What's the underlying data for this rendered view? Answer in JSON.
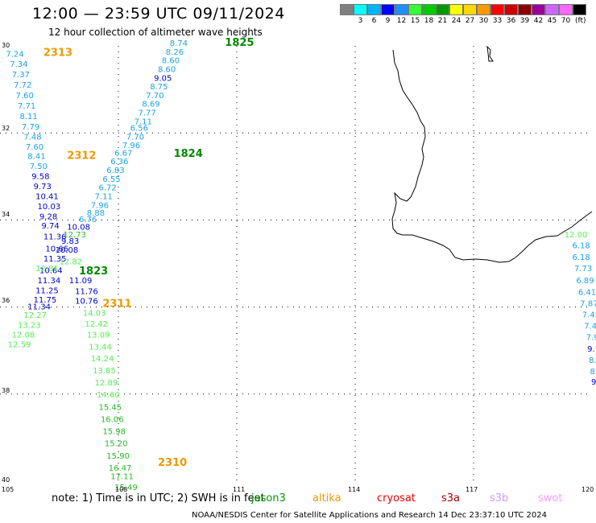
{
  "header": {
    "title": "12:00 — 23:59 UTC 09/11/2024",
    "subtitle": "12 hour collection of altimeter wave heights"
  },
  "colorbar": {
    "unit": "(ft)",
    "entries": [
      {
        "label": "",
        "color": "#808080"
      },
      {
        "label": "3",
        "color": "#00ffff"
      },
      {
        "label": "6",
        "color": "#00b4ff"
      },
      {
        "label": "9",
        "color": "#0000ff"
      },
      {
        "label": "12",
        "color": "#1e90ff"
      },
      {
        "label": "15",
        "color": "#33ff33"
      },
      {
        "label": "18",
        "color": "#00cc00"
      },
      {
        "label": "21",
        "color": "#009900"
      },
      {
        "label": "24",
        "color": "#ffff00"
      },
      {
        "label": "27",
        "color": "#ffd700"
      },
      {
        "label": "30",
        "color": "#ff9900"
      },
      {
        "label": "33",
        "color": "#ff0000"
      },
      {
        "label": "36",
        "color": "#cc0000"
      },
      {
        "label": "39",
        "color": "#8b0000"
      },
      {
        "label": "42",
        "color": "#990099"
      },
      {
        "label": "45",
        "color": "#cc66ff"
      },
      {
        "label": "70",
        "color": "#ff66ff"
      },
      {
        "label": "",
        "color": "#000000"
      }
    ]
  },
  "axes": {
    "lat_labels": [
      "30",
      "32",
      "34",
      "36",
      "38",
      "40"
    ],
    "lon_labels": [
      "105",
      "108",
      "111",
      "114",
      "117",
      "120"
    ]
  },
  "colors": {
    "c_lightblue": "#1aa3e8",
    "c_blue": "#0000cc",
    "c_lgreen": "#55ee55",
    "c_green": "#22bb22",
    "c_dgreen": "#008800",
    "c_orange": "#ee9900",
    "c_pink": "#ee66ee"
  },
  "passes": [
    {
      "label": "2313",
      "color": "c_orange",
      "lon": 106.1,
      "lat": 30.23
    },
    {
      "label": "1825",
      "color": "c_dgreen",
      "lon": 110.7,
      "lat": 30.0
    },
    {
      "label": "2312",
      "color": "c_orange",
      "lon": 106.7,
      "lat": 32.6
    },
    {
      "label": "1824",
      "color": "c_dgreen",
      "lon": 109.4,
      "lat": 32.55
    },
    {
      "label": "1823",
      "color": "c_dgreen",
      "lon": 107.0,
      "lat": 35.25
    },
    {
      "label": "2311",
      "color": "c_orange",
      "lon": 107.6,
      "lat": 36.0
    },
    {
      "label": "2310",
      "color": "c_orange",
      "lon": 109.0,
      "lat": 39.65
    }
  ],
  "tracks": [
    {
      "name": "pass-2313",
      "points": [
        {
          "v": "7.24",
          "c": "c_lightblue",
          "lon": 105.15,
          "lat": 30.25
        },
        {
          "v": "7.34",
          "c": "c_lightblue",
          "lon": 105.25,
          "lat": 30.48
        },
        {
          "v": "7.37",
          "c": "c_lightblue",
          "lon": 105.3,
          "lat": 30.72
        },
        {
          "v": "7.72",
          "c": "c_lightblue",
          "lon": 105.35,
          "lat": 30.96
        },
        {
          "v": "7.60",
          "c": "c_lightblue",
          "lon": 105.4,
          "lat": 31.2
        },
        {
          "v": "7.71",
          "c": "c_lightblue",
          "lon": 105.45,
          "lat": 31.44
        },
        {
          "v": "8.11",
          "c": "c_lightblue",
          "lon": 105.5,
          "lat": 31.68
        },
        {
          "v": "7.79",
          "c": "c_lightblue",
          "lon": 105.55,
          "lat": 31.92
        },
        {
          "v": "7.48",
          "c": "c_lightblue",
          "lon": 105.6,
          "lat": 32.15
        },
        {
          "v": "7.60",
          "c": "c_lightblue",
          "lon": 105.65,
          "lat": 32.38
        },
        {
          "v": "8.41",
          "c": "c_lightblue",
          "lon": 105.7,
          "lat": 32.6
        },
        {
          "v": "7.50",
          "c": "c_lightblue",
          "lon": 105.75,
          "lat": 32.83
        },
        {
          "v": "9.58",
          "c": "c_blue",
          "lon": 105.8,
          "lat": 33.06
        },
        {
          "v": "9.73",
          "c": "c_blue",
          "lon": 105.85,
          "lat": 33.29
        },
        {
          "v": "10.41",
          "c": "c_blue",
          "lon": 105.9,
          "lat": 33.52
        },
        {
          "v": "10.03",
          "c": "c_blue",
          "lon": 105.95,
          "lat": 33.75
        },
        {
          "v": "9.28",
          "c": "c_blue",
          "lon": 106.0,
          "lat": 33.98
        },
        {
          "v": "9.74",
          "c": "c_blue",
          "lon": 106.05,
          "lat": 34.2
        },
        {
          "v": "11.36",
          "c": "c_blue",
          "lon": 106.1,
          "lat": 34.45
        },
        {
          "v": "10.66",
          "c": "c_blue",
          "lon": 106.15,
          "lat": 34.72
        },
        {
          "v": "11.35",
          "c": "c_blue",
          "lon": 106.1,
          "lat": 34.95
        },
        {
          "v": "10.64",
          "c": "c_blue",
          "lon": 106.0,
          "lat": 35.22
        },
        {
          "v": "11.34",
          "c": "c_blue",
          "lon": 105.95,
          "lat": 35.45
        },
        {
          "v": "11.25",
          "c": "c_blue",
          "lon": 105.9,
          "lat": 35.68
        },
        {
          "v": "11.75",
          "c": "c_blue",
          "lon": 105.85,
          "lat": 35.9
        },
        {
          "v": "11.34",
          "c": "c_blue",
          "lon": 105.7,
          "lat": 36.05
        }
      ]
    },
    {
      "name": "pass-1825",
      "points": [
        {
          "v": "8.74",
          "c": "c_lightblue",
          "lon": 109.3,
          "lat": 30.0
        },
        {
          "v": "8.26",
          "c": "c_lightblue",
          "lon": 109.2,
          "lat": 30.2
        },
        {
          "v": "8.60",
          "c": "c_lightblue",
          "lon": 109.1,
          "lat": 30.4
        },
        {
          "v": "8.60",
          "c": "c_lightblue",
          "lon": 109.0,
          "lat": 30.6
        },
        {
          "v": "9.05",
          "c": "c_blue",
          "lon": 108.9,
          "lat": 30.8
        },
        {
          "v": "8.75",
          "c": "c_lightblue",
          "lon": 108.8,
          "lat": 31.0
        },
        {
          "v": "7.70",
          "c": "c_lightblue",
          "lon": 108.7,
          "lat": 31.2
        },
        {
          "v": "8.69",
          "c": "c_lightblue",
          "lon": 108.6,
          "lat": 31.4
        },
        {
          "v": "7.77",
          "c": "c_lightblue",
          "lon": 108.5,
          "lat": 31.6
        },
        {
          "v": "7.11",
          "c": "c_lightblue",
          "lon": 108.4,
          "lat": 31.8
        },
        {
          "v": "6.56",
          "c": "c_lightblue",
          "lon": 108.3,
          "lat": 31.95
        },
        {
          "v": "7.70",
          "c": "c_lightblue",
          "lon": 108.2,
          "lat": 32.15
        },
        {
          "v": "7.96",
          "c": "c_lightblue",
          "lon": 108.1,
          "lat": 32.35
        },
        {
          "v": "6.67",
          "c": "c_lightblue",
          "lon": 107.9,
          "lat": 32.52
        },
        {
          "v": "6.36",
          "c": "c_lightblue",
          "lon": 107.8,
          "lat": 32.72
        },
        {
          "v": "6.83",
          "c": "c_lightblue",
          "lon": 107.7,
          "lat": 32.92
        },
        {
          "v": "6.55",
          "c": "c_lightblue",
          "lon": 107.6,
          "lat": 33.12
        },
        {
          "v": "6.72",
          "c": "c_lightblue",
          "lon": 107.5,
          "lat": 33.32
        },
        {
          "v": "7.11",
          "c": "c_lightblue",
          "lon": 107.4,
          "lat": 33.52
        },
        {
          "v": "7.96",
          "c": "c_lightblue",
          "lon": 107.3,
          "lat": 33.72
        },
        {
          "v": "8.88",
          "c": "c_lightblue",
          "lon": 107.2,
          "lat": 33.9
        },
        {
          "v": "6.76",
          "c": "c_lightblue",
          "lon": 107.0,
          "lat": 34.05
        },
        {
          "v": "10.08",
          "c": "c_blue",
          "lon": 106.7,
          "lat": 34.22
        },
        {
          "v": "12.73",
          "c": "c_green",
          "lon": 106.6,
          "lat": 34.4
        },
        {
          "v": "9.83",
          "c": "c_blue",
          "lon": 106.55,
          "lat": 34.55
        },
        {
          "v": "10.08",
          "c": "c_blue",
          "lon": 106.4,
          "lat": 34.75
        },
        {
          "v": "12.82",
          "c": "c_lgreen",
          "lon": 106.5,
          "lat": 35.02
        },
        {
          "v": "12.81",
          "c": "c_lgreen",
          "lon": 105.9,
          "lat": 35.18
        },
        {
          "v": "11.09",
          "c": "c_blue",
          "lon": 106.75,
          "lat": 35.45
        },
        {
          "v": "11.76",
          "c": "c_blue",
          "lon": 106.9,
          "lat": 35.7
        },
        {
          "v": "10.76",
          "c": "c_blue",
          "lon": 106.9,
          "lat": 35.92
        }
      ]
    },
    {
      "name": "pass-2310",
      "points": [
        {
          "v": "12.27",
          "c": "c_lgreen",
          "lon": 105.6,
          "lat": 36.25
        },
        {
          "v": "13.23",
          "c": "c_lgreen",
          "lon": 105.45,
          "lat": 36.48
        },
        {
          "v": "12.08",
          "c": "c_lgreen",
          "lon": 105.3,
          "lat": 36.7
        },
        {
          "v": "12.59",
          "c": "c_lgreen",
          "lon": 105.2,
          "lat": 36.92
        },
        {
          "v": "14.03",
          "c": "c_lgreen",
          "lon": 107.1,
          "lat": 36.2
        },
        {
          "v": "12.42",
          "c": "c_lgreen",
          "lon": 107.15,
          "lat": 36.45
        },
        {
          "v": "13.09",
          "c": "c_lgreen",
          "lon": 107.2,
          "lat": 36.7
        },
        {
          "v": "13.44",
          "c": "c_lgreen",
          "lon": 107.25,
          "lat": 36.98
        },
        {
          "v": "14.24",
          "c": "c_lgreen",
          "lon": 107.3,
          "lat": 37.25
        },
        {
          "v": "13.85",
          "c": "c_lgreen",
          "lon": 107.35,
          "lat": 37.52
        },
        {
          "v": "12.89",
          "c": "c_lgreen",
          "lon": 107.4,
          "lat": 37.8
        },
        {
          "v": "14.60",
          "c": "c_lgreen",
          "lon": 107.45,
          "lat": 38.08
        },
        {
          "v": "15.45",
          "c": "c_green",
          "lon": 107.5,
          "lat": 38.36
        },
        {
          "v": "16.06",
          "c": "c_green",
          "lon": 107.55,
          "lat": 38.64
        },
        {
          "v": "15.98",
          "c": "c_green",
          "lon": 107.6,
          "lat": 38.92
        },
        {
          "v": "15.20",
          "c": "c_green",
          "lon": 107.65,
          "lat": 39.2
        },
        {
          "v": "15.90",
          "c": "c_green",
          "lon": 107.7,
          "lat": 39.48
        },
        {
          "v": "16.47",
          "c": "c_green",
          "lon": 107.75,
          "lat": 39.76
        },
        {
          "v": "17.11",
          "c": "c_green",
          "lon": 107.8,
          "lat": 39.95
        },
        {
          "v": "15.49",
          "c": "c_green",
          "lon": 107.9,
          "lat": 40.2
        }
      ]
    },
    {
      "name": "pass-east",
      "points": [
        {
          "v": "12.00",
          "c": "c_lgreen",
          "lon": 119.3,
          "lat": 34.4
        },
        {
          "v": "6.18",
          "c": "c_lightblue",
          "lon": 119.5,
          "lat": 34.65
        },
        {
          "v": "6.18",
          "c": "c_lightblue",
          "lon": 119.5,
          "lat": 34.92
        },
        {
          "v": "7.73",
          "c": "c_lightblue",
          "lon": 119.55,
          "lat": 35.18
        },
        {
          "v": "6.89",
          "c": "c_lightblue",
          "lon": 119.6,
          "lat": 35.45
        },
        {
          "v": "6.41",
          "c": "c_lightblue",
          "lon": 119.65,
          "lat": 35.72
        },
        {
          "v": "7.87",
          "c": "c_lightblue",
          "lon": 119.7,
          "lat": 35.98
        },
        {
          "v": "7.45",
          "c": "c_lightblue",
          "lon": 119.75,
          "lat": 36.24
        },
        {
          "v": "7.41",
          "c": "c_lightblue",
          "lon": 119.8,
          "lat": 36.5
        },
        {
          "v": "7.9",
          "c": "c_lightblue",
          "lon": 119.85,
          "lat": 36.76
        },
        {
          "v": "9.1",
          "c": "c_blue",
          "lon": 119.88,
          "lat": 37.02
        },
        {
          "v": "8.7",
          "c": "c_lightblue",
          "lon": 119.92,
          "lat": 37.28
        },
        {
          "v": "8.",
          "c": "c_lightblue",
          "lon": 119.95,
          "lat": 37.54
        },
        {
          "v": "9",
          "c": "c_blue",
          "lon": 119.98,
          "lat": 37.78
        }
      ]
    }
  ],
  "note": {
    "text": "note:  1) Time is in UTC; 2) SWH is in feet",
    "satellites": [
      {
        "name": "jason3",
        "color": "#009900"
      },
      {
        "name": "altika",
        "color": "#ee9900"
      },
      {
        "name": "cryosat",
        "color": "#ee0000"
      },
      {
        "name": "s3a",
        "color": "#aa0000"
      },
      {
        "name": "s3b",
        "color": "#cc99ff"
      },
      {
        "name": "swot",
        "color": "#ff99ff"
      }
    ]
  },
  "credit": "NOAA/NESDIS Center for Satellite Applications and Research    14 Dec 23:37:10 UTC 2024"
}
